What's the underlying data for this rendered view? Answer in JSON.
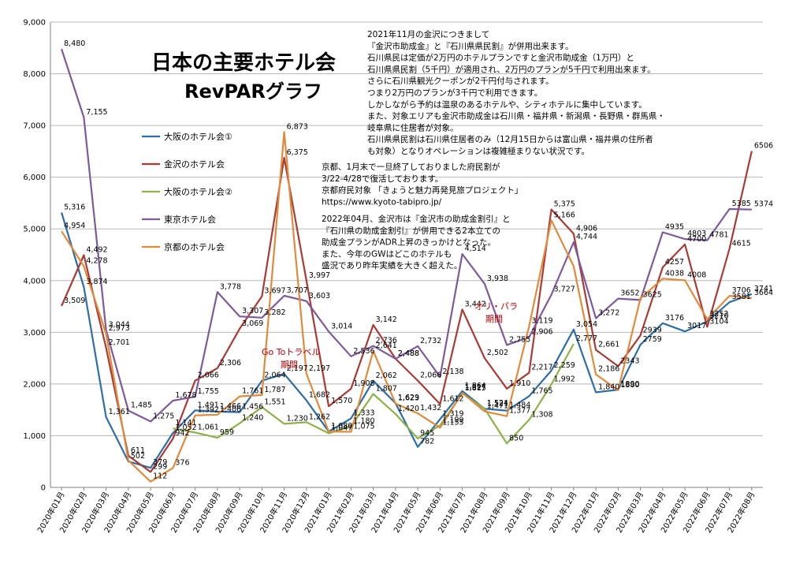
{
  "chart_data": {
    "type": "line",
    "title_line1": "日本の主要ホテル会",
    "title_line2": "RevPARグラフ",
    "ylim": [
      0,
      9000
    ],
    "yticks": [
      "0",
      "1,000",
      "2,000",
      "3,000",
      "4,000",
      "5,000",
      "6,000",
      "7,000",
      "8,000",
      "9,000"
    ],
    "categories": [
      "2020年01月",
      "2020年02月",
      "2020年03月",
      "2020年04月",
      "2020年05月",
      "2020年06月",
      "2020年07月",
      "2020年08月",
      "2020年09月",
      "2020年10月",
      "2020年11月",
      "2020年12月",
      "2021年01月",
      "2021年02月",
      "2021年03月",
      "2021年04月",
      "2021年05月",
      "2021年06月",
      "2021年07月",
      "2021年08月",
      "2021年09月",
      "2021年10月",
      "2021年11月",
      "2021年12月",
      "2022年01月",
      "2022年02月",
      "2022年03月",
      "2022年04月",
      "2022年05月",
      "2022年06月",
      "2022年07月",
      "2022年08月"
    ],
    "series": [
      {
        "name": "大阪のホテル会①",
        "color": "#2e6ea6",
        "values": [
          5316,
          3874,
          1361,
          502,
          379,
          1052,
          1491,
          1466,
          1456,
          2064,
          2197,
          1682,
          1080,
          1333,
          2062,
          1629,
          782,
          1319,
          1864,
          1521,
          1484,
          1765,
          2259,
          3054,
          1840,
          1890,
          2759,
          3176,
          3017,
          3210,
          3581,
          3741
        ],
        "labels": [
          "5,316",
          "3,874",
          "1,361",
          "502",
          "379",
          "1,052",
          "1,491",
          "1,466",
          "1,456",
          "2,064",
          "2,197",
          "1,682",
          "1,080",
          "1,333",
          "2,062",
          "1,629",
          "782",
          "1,319",
          "1,864",
          "1,521",
          "1,484",
          "1,765",
          "2,259",
          "3,054",
          "1,840",
          "1890",
          "2759",
          "3176",
          "3017",
          "3210",
          "3581",
          "3741"
        ]
      },
      {
        "name": "金沢のホテル会",
        "color": "#a93a34",
        "values": [
          3509,
          4492,
          2701,
          611,
          299,
          942,
          2066,
          2306,
          3069,
          3697,
          6375,
          3997,
          1570,
          1908,
          3142,
          2488,
          2066,
          1612,
          3442,
          2502,
          1910,
          2217,
          5375,
          4906,
          2661,
          2343,
          2939,
          4257,
          4700,
          3104,
          4615,
          6506
        ],
        "labels": [
          "3,509",
          "4,492",
          "2,701",
          "611",
          "299",
          "942",
          "2,066",
          "2,306",
          "3,069",
          "3,697",
          "6,375",
          "3,997",
          "1,570",
          "1,908",
          "3,142",
          "2,488",
          "2,066",
          "1,612",
          "3,442",
          "2,502",
          "1,910",
          "2,217",
          "5,375",
          "4,906",
          "2,661",
          "2343",
          "2939",
          "4257",
          "4700",
          "3104",
          "4615",
          "6506"
        ]
      },
      {
        "name": "大阪のホテル会②",
        "color": "#8db14a",
        "values": [
          null,
          null,
          null,
          null,
          null,
          1141,
          1061,
          959,
          1240,
          1551,
          1230,
          1262,
          1047,
          1180,
          1807,
          1420,
          945,
          1199,
          1815,
          1524,
          850,
          1308,
          1992,
          2777,
          null,
          null,
          null,
          null,
          null,
          null,
          null,
          null
        ],
        "labels": [
          "",
          "",
          "",
          "",
          "",
          "1,141",
          "1,061",
          "959",
          "1,240",
          "1,551",
          "1,230",
          "1,262",
          "1,047",
          "1,180",
          "1,807",
          "1,420",
          "945",
          "1,199",
          "1,815",
          "1,524",
          "850",
          "1,308",
          "1,992",
          "2,777",
          "",
          "",
          "",
          "",
          "",
          "",
          "",
          ""
        ]
      },
      {
        "name": "東京ホテル会",
        "color": "#7d5a9c",
        "values": [
          8480,
          7155,
          3044,
          1485,
          1275,
          1678,
          1755,
          3778,
          3307,
          3282,
          3707,
          3603,
          3014,
          2536,
          2736,
          2488,
          2732,
          2138,
          4514,
          3938,
          2755,
          2906,
          3727,
          4744,
          3272,
          3652,
          3625,
          4935,
          4803,
          4781,
          5385,
          5374
        ],
        "labels": [
          "8,480",
          "7,155",
          "3,044",
          "1,485",
          "1,275",
          "1,678",
          "1,755",
          "3,778",
          "3,307",
          "3,282",
          "3,707",
          "3,603",
          "3,014",
          "2,536",
          "2,736",
          "2,488",
          "2,732",
          "2,138",
          "4,514",
          "3,938",
          "2,755",
          "2,906",
          "3,727",
          "4,744",
          "3,272",
          "3652",
          "3625",
          "4935",
          "4803",
          "4781",
          "5385",
          "5374"
        ]
      },
      {
        "name": "京都のホテル会",
        "color": "#e08a3c",
        "values": [
          4954,
          4278,
          2973,
          522,
          112,
          376,
          1392,
          1406,
          1761,
          1787,
          6873,
          2197,
          1080,
          1075,
          2641,
          1623,
          1432,
          1155,
          1827,
          1471,
          1377,
          3119,
          5166,
          4278,
          2186,
          1880,
          3655,
          4038,
          4008,
          3252,
          3706,
          3664
        ],
        "labels": [
          "4,954",
          "4,278",
          "2,973",
          "",
          "112",
          "376",
          "1,392",
          "1,406",
          "1,761",
          "1,787",
          "6,873",
          "2,197",
          "",
          "1,075",
          "2,641",
          "1,623",
          "1,432",
          "1,155",
          "1,827",
          "1,471",
          "1,377",
          "3,119",
          "5,166",
          "",
          "2,186",
          "1880",
          "",
          "4038",
          "4008",
          "3252",
          "3706",
          "3664"
        ]
      }
    ],
    "annotations": {
      "goto": [
        "Go Toトラベル",
        "期間"
      ],
      "oripara": [
        "オリ・パラ",
        "期間"
      ]
    },
    "notes": [
      "2021年11月の金沢につきまして",
      "『金沢市助成金』と『石川県県民割』が併用出来ます。",
      "石川県民は定価が2万円のホテルプランですと金沢市助成金（1万円）と",
      "石川県県民割（5千円）が適用され、2万円のプランが5千円で利用出来ます。",
      "さらに石川県観光クーポンが2千円付与されます。",
      "つまり2万円のプランが3千円で利用できます。",
      "しかしながら予約は温泉のあるホテルや、シティホテルに集中しています。",
      "また、対象エリアも金沢市助成金は石川県・福井県・新潟県・長野県・群馬県・",
      "岐阜県に住居者が対象。",
      "石川県県民割は石川県住居者のみ（12月15日からは富山県・福井県の住所者",
      "も対象）となりオペレーションは複雑極まりない状況です。",
      "京都、1月末で一旦終了しておりました府民割が",
      "3/22-4/28で復活しております。",
      "京都府民対象 「きょうと魅力再発見旅プロジェクト」",
      "https://www.kyoto-tabipro.jp/",
      "2022年04月、金沢市は『金沢市の助成金割引』と",
      "『石川県の助成金割引』が併用できる2本立ての",
      "助成金プランがADR上昇のきっかけとなった。",
      "また、今年のGWはどこのホテルも",
      "盛況であり昨年実績を大きく超えた。"
    ]
  }
}
